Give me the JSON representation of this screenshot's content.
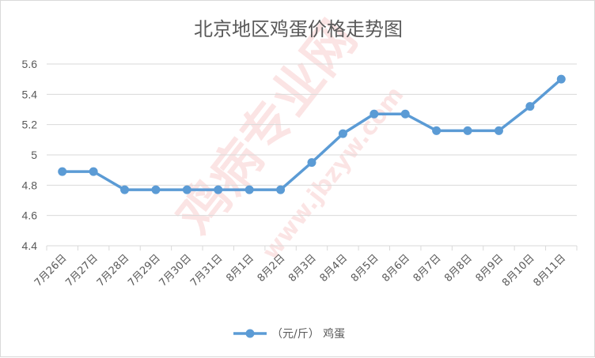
{
  "chart_data": {
    "type": "line",
    "title": "北京地区鸡蛋价格走势图",
    "categories": [
      "7月26日",
      "7月27日",
      "7月28日",
      "7月29日",
      "7月30日",
      "7月31日",
      "8月1日",
      "8月2日",
      "8月3日",
      "8月4日",
      "8月5日",
      "8月6日",
      "8月7日",
      "8月8日",
      "8月9日",
      "8月10日",
      "8月11日"
    ],
    "series": [
      {
        "name": "（元/斤） 鸡蛋",
        "values": [
          4.89,
          4.89,
          4.77,
          4.77,
          4.77,
          4.77,
          4.77,
          4.77,
          4.95,
          5.14,
          5.27,
          5.27,
          5.16,
          5.16,
          5.16,
          5.32,
          5.5
        ],
        "color": "#5b9bd5"
      }
    ],
    "ylim": [
      4.4,
      5.6
    ],
    "yticks": [
      "4.4",
      "4.6",
      "4.8",
      "5",
      "5.2",
      "5.4",
      "5.6"
    ],
    "grid": true,
    "legend": "bottom"
  },
  "watermark": {
    "text": "鸡病专业网",
    "url": "www.jbzyw.com",
    "color": "#e8393b"
  }
}
